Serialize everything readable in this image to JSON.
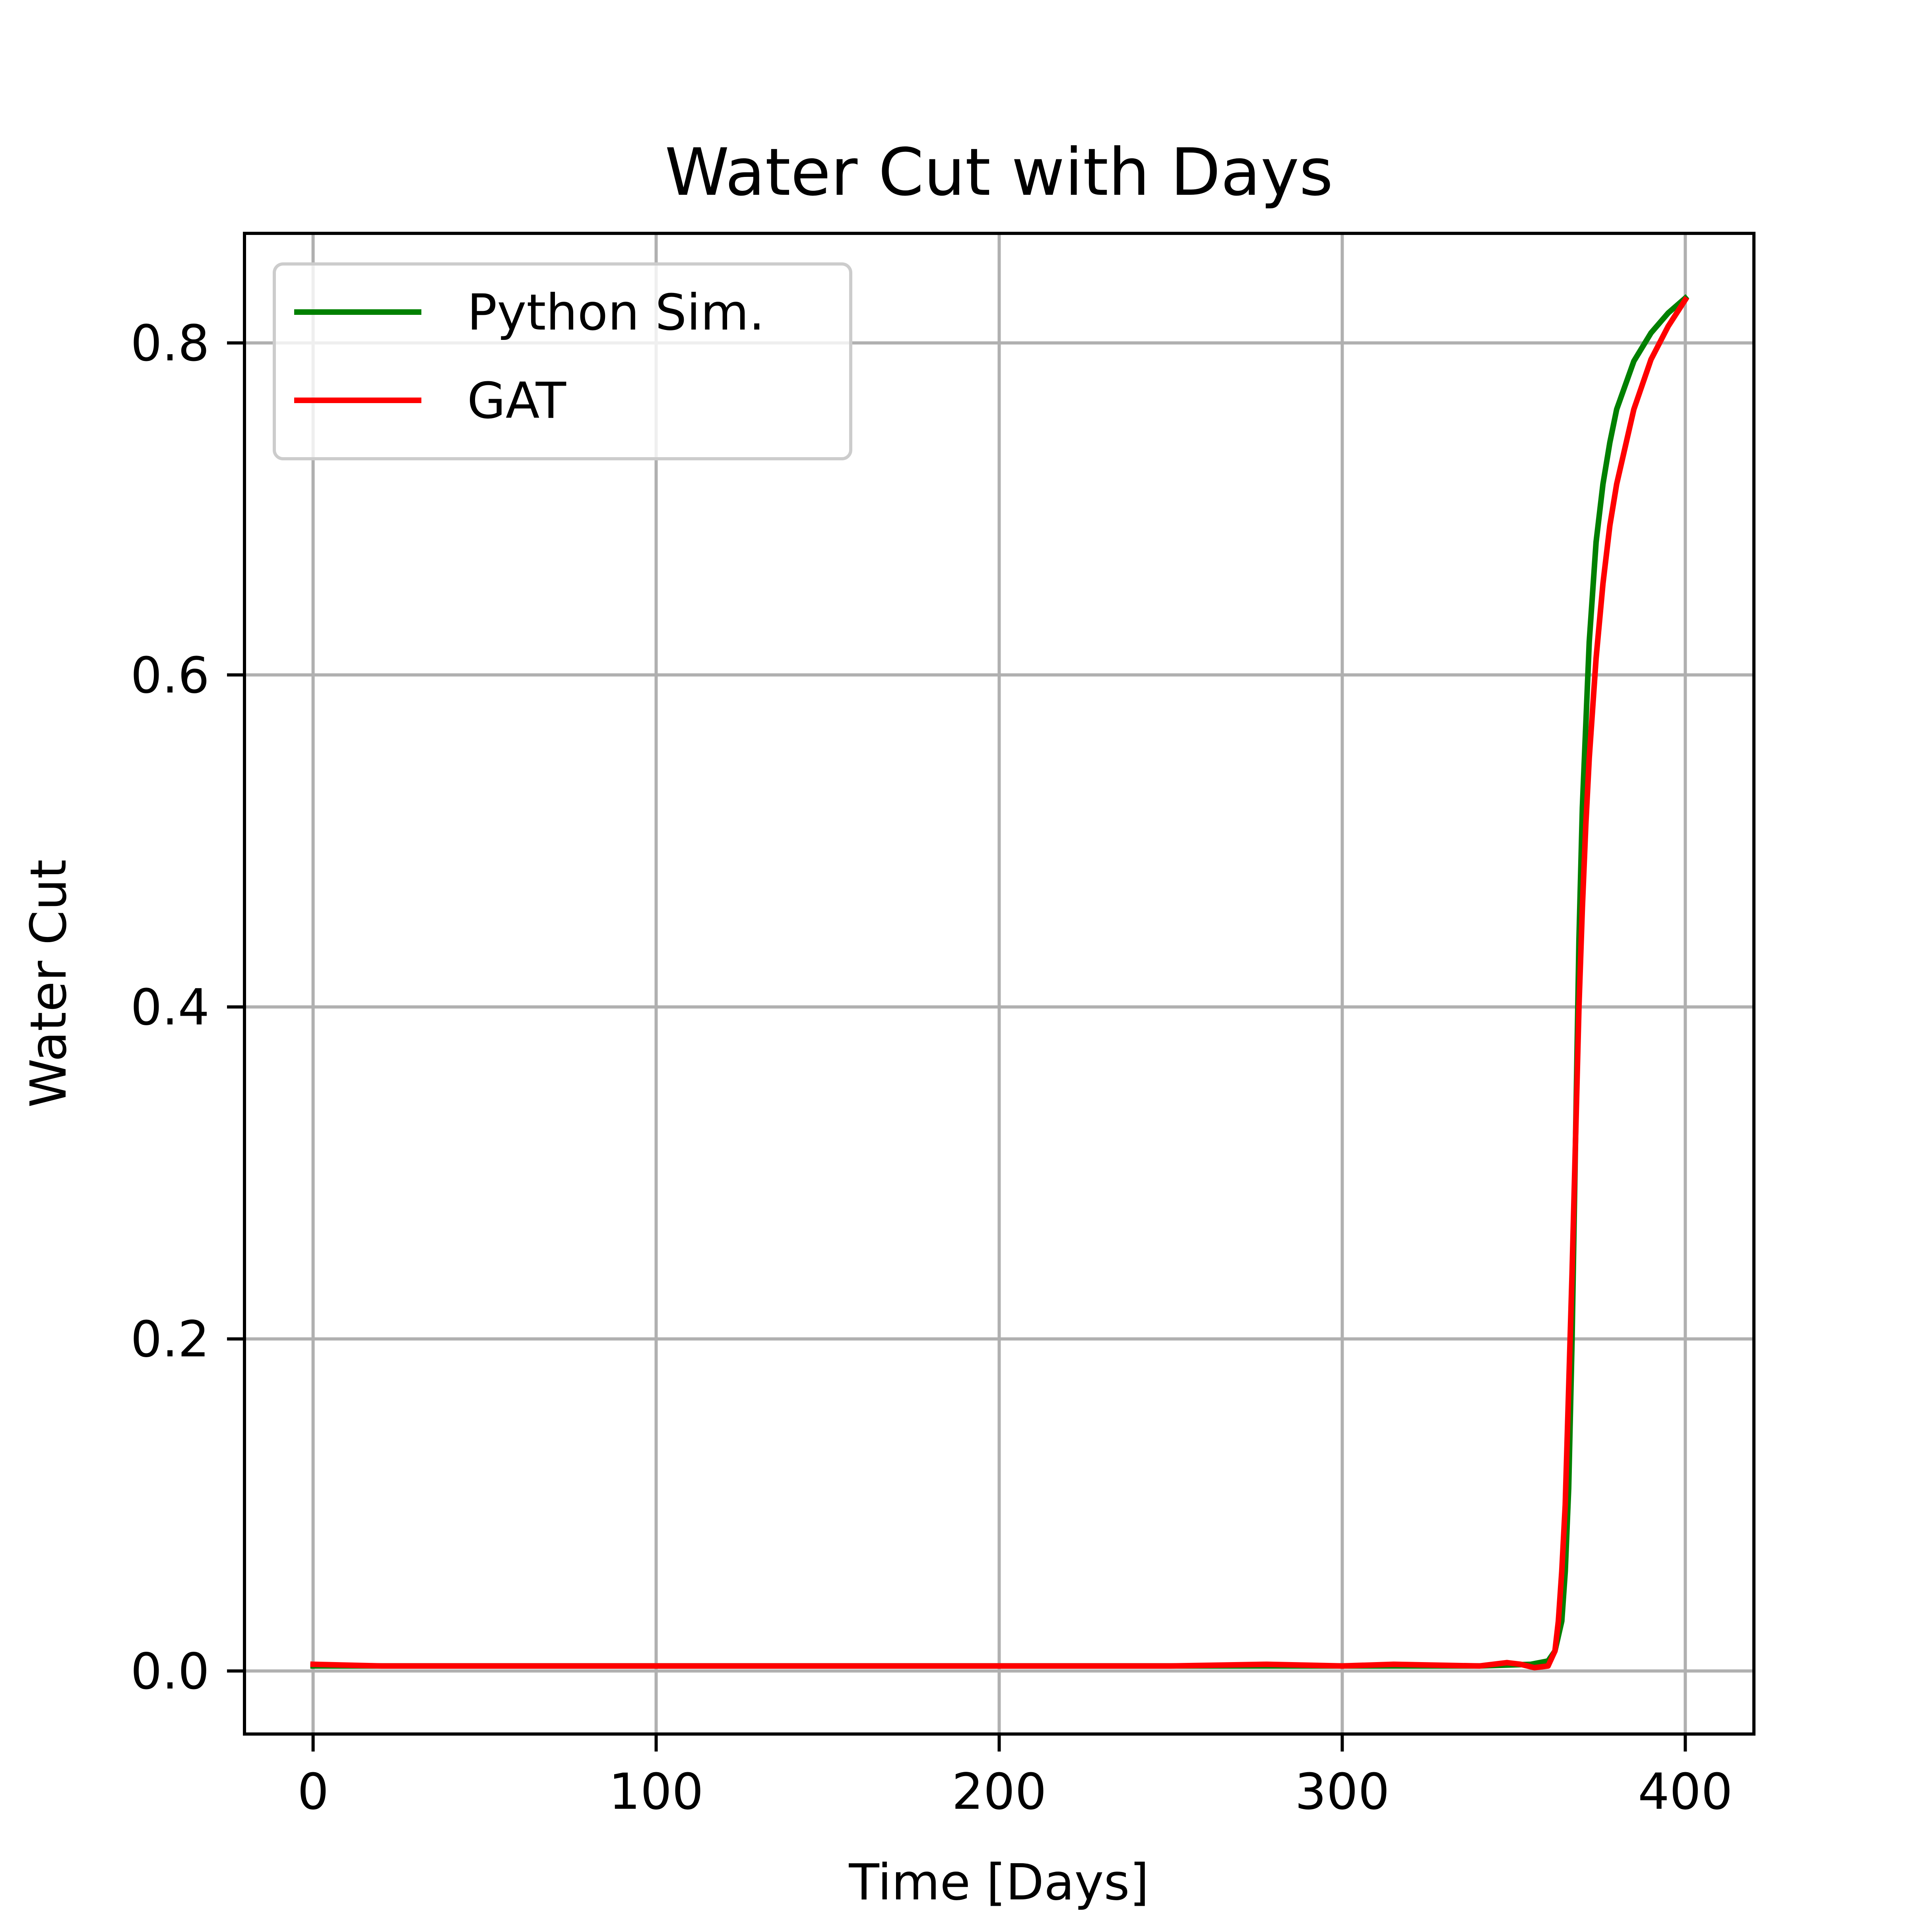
{
  "chart_data": {
    "type": "line",
    "title": "Water Cut with Days",
    "xlabel": "Time [Days]",
    "ylabel": "Water Cut",
    "xlim": [
      -20,
      420
    ],
    "ylim": [
      -0.038,
      0.866
    ],
    "xticks": [
      0,
      100,
      200,
      300,
      400
    ],
    "yticks": [
      0.0,
      0.2,
      0.4,
      0.6,
      0.8
    ],
    "xtick_labels": [
      "0",
      "100",
      "200",
      "300",
      "400"
    ],
    "ytick_labels": [
      "0.0",
      "0.2",
      "0.4",
      "0.6",
      "0.8"
    ],
    "grid": true,
    "legend_position": "upper-left",
    "series": [
      {
        "name": "Python Sim.",
        "color": "#008000",
        "x": [
          0,
          50,
          100,
          150,
          200,
          250,
          300,
          340,
          355,
          360,
          362,
          364,
          365,
          366,
          367,
          368,
          369,
          370,
          372,
          374,
          376,
          378,
          380,
          385,
          390,
          395,
          400
        ],
        "y": [
          0.003,
          0.003,
          0.003,
          0.003,
          0.003,
          0.003,
          0.003,
          0.003,
          0.004,
          0.006,
          0.012,
          0.03,
          0.06,
          0.11,
          0.2,
          0.32,
          0.44,
          0.52,
          0.62,
          0.68,
          0.715,
          0.74,
          0.76,
          0.789,
          0.806,
          0.818,
          0.827
        ]
      },
      {
        "name": "GAT",
        "color": "#ff0000",
        "x": [
          0,
          20,
          50,
          100,
          150,
          200,
          250,
          278,
          300,
          315,
          340,
          348,
          352,
          356,
          360,
          362,
          363,
          364,
          365,
          366,
          367,
          368,
          369,
          370,
          371,
          372,
          374,
          376,
          378,
          380,
          385,
          390,
          395,
          400
        ],
        "y": [
          0.004,
          0.003,
          0.003,
          0.003,
          0.003,
          0.003,
          0.003,
          0.004,
          0.003,
          0.004,
          0.003,
          0.005,
          0.004,
          0.002,
          0.003,
          0.012,
          0.03,
          0.06,
          0.1,
          0.17,
          0.24,
          0.32,
          0.4,
          0.46,
          0.51,
          0.55,
          0.61,
          0.655,
          0.69,
          0.715,
          0.76,
          0.79,
          0.81,
          0.826
        ]
      }
    ]
  }
}
